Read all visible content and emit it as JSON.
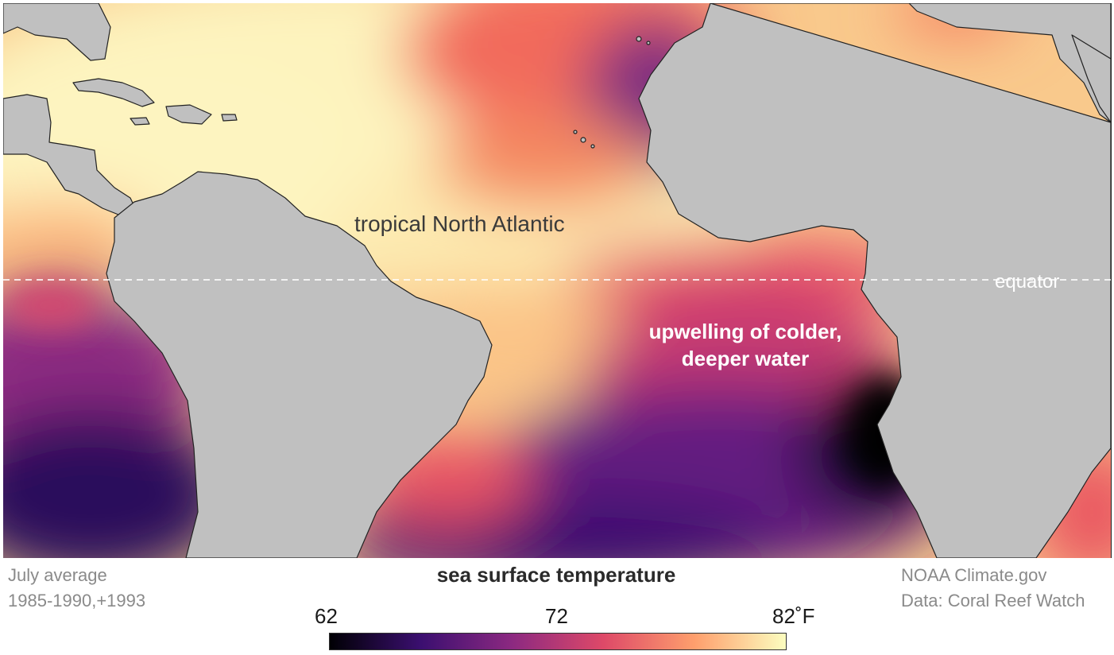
{
  "map": {
    "annotations": {
      "tropical_north_atlantic": "tropical North Atlantic",
      "upwelling_line1": "upwelling of colder,",
      "upwelling_line2": "deeper water",
      "equator": "equator"
    }
  },
  "footer": {
    "left_line1": "July average",
    "left_line2": "1985-1990,+1993",
    "right_line1": "NOAA Climate.gov",
    "right_line2": "Data:  Coral Reef Watch"
  },
  "legend": {
    "title": "sea surface temperature",
    "tick_min": "62",
    "tick_mid": "72",
    "tick_max": "82˚F",
    "colors": [
      "#000004",
      "#3b0f70",
      "#8c2981",
      "#de4968",
      "#fe9f6d",
      "#fcfdbf"
    ]
  },
  "colors": {
    "land": "#c0c0c0",
    "coastline": "#222222"
  }
}
